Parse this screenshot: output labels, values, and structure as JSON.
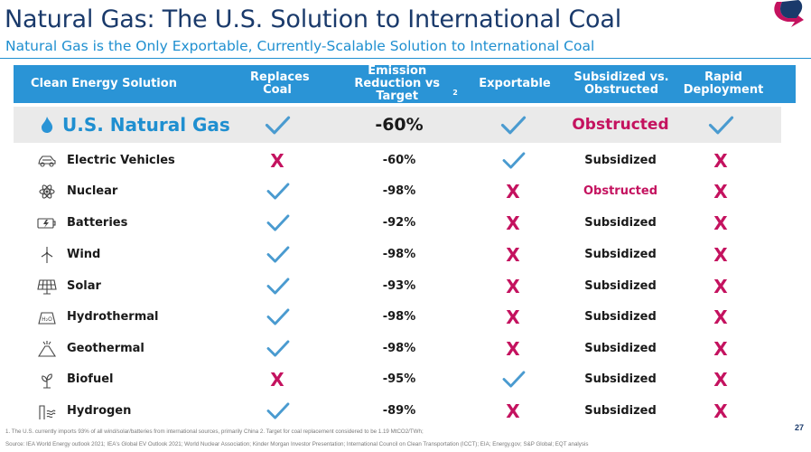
{
  "title": "Natural Gas: The U.S. Solution to International Coal",
  "subtitle": "Natural Gas is the Only Exportable, Currently-Scalable Solution to International Coal",
  "columns": {
    "solution": "Clean Energy Solution",
    "replaces": "Replaces Coal",
    "emission": "Emission Reduction vs Target",
    "emission_sup": "2",
    "exportable": "Exportable",
    "subsidized": "Subsidized vs. Obstructed",
    "rapid": "Rapid Deployment"
  },
  "hero": {
    "icon": "flame-icon",
    "name": "U.S. Natural Gas",
    "replaces": true,
    "emission": "-60%",
    "exportable": true,
    "status": "Obstructed",
    "rapid": true
  },
  "rows": [
    {
      "icon": "car-icon",
      "name": "Electric Vehicles",
      "replaces": false,
      "emission": "-60%",
      "exportable": true,
      "status": "Subsidized",
      "rapid": false
    },
    {
      "icon": "atom-icon",
      "name": "Nuclear",
      "replaces": true,
      "emission": "-98%",
      "exportable": false,
      "status": "Obstructed",
      "rapid": false
    },
    {
      "icon": "battery-icon",
      "name": "Batteries",
      "replaces": true,
      "emission": "-92%",
      "exportable": false,
      "status": "Subsidized",
      "rapid": false
    },
    {
      "icon": "wind-turbine-icon",
      "name": "Wind",
      "replaces": true,
      "emission": "-98%",
      "exportable": false,
      "status": "Subsidized",
      "rapid": false
    },
    {
      "icon": "solar-panel-icon",
      "name": "Solar",
      "replaces": true,
      "emission": "-93%",
      "exportable": false,
      "status": "Subsidized",
      "rapid": false
    },
    {
      "icon": "dam-icon",
      "name": "Hydrothermal",
      "replaces": true,
      "emission": "-98%",
      "exportable": false,
      "status": "Subsidized",
      "rapid": false
    },
    {
      "icon": "volcano-icon",
      "name": "Geothermal",
      "replaces": true,
      "emission": "-98%",
      "exportable": false,
      "status": "Subsidized",
      "rapid": false
    },
    {
      "icon": "sprout-icon",
      "name": "Biofuel",
      "replaces": false,
      "emission": "-95%",
      "exportable": true,
      "status": "Subsidized",
      "rapid": false
    },
    {
      "icon": "hydrogen-icon",
      "name": "Hydrogen",
      "replaces": true,
      "emission": "-89%",
      "exportable": false,
      "status": "Subsidized",
      "rapid": false
    }
  ],
  "footnote1": "1. The U.S. currently imports 93% of all wind/solar/batteries from international sources, primarily China 2. Target for coal replacement considered to be 1.19 MtCO2/TWh;",
  "footnote2": "Source: IEA World Energy outlook 2021; IEA's Global EV Outlook 2021; World Nuclear Association; Kinder Morgan Investor Presentation; International Council on Clean Transportation (ICCT); EIA; Energy.gov; S&P Global; EQT analysis",
  "page_number": "27",
  "colors": {
    "accent": "#2a94d6",
    "title": "#1a3a6b",
    "obstructed": "#c4125f",
    "check": "#4a9bd0"
  }
}
